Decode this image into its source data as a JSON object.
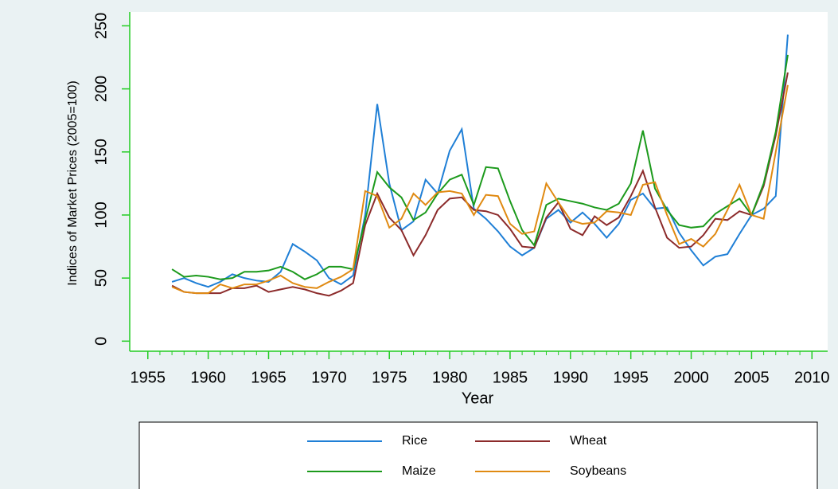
{
  "chart_data": {
    "type": "line",
    "x_label": "Year",
    "y_label": "Indices of Market Prices (2005=100)",
    "x": [
      1957,
      1958,
      1959,
      1960,
      1961,
      1962,
      1963,
      1964,
      1965,
      1966,
      1967,
      1968,
      1969,
      1970,
      1971,
      1972,
      1973,
      1974,
      1975,
      1976,
      1977,
      1978,
      1979,
      1980,
      1981,
      1982,
      1983,
      1984,
      1985,
      1986,
      1987,
      1988,
      1989,
      1990,
      1991,
      1992,
      1993,
      1994,
      1995,
      1996,
      1997,
      1998,
      1999,
      2000,
      2001,
      2002,
      2003,
      2004,
      2005,
      2006,
      2007,
      2008
    ],
    "series": [
      {
        "name": "Rice",
        "color": "#1f7fd6",
        "values": [
          47,
          50,
          46,
          43,
          47,
          53,
          50,
          48,
          47,
          55,
          77,
          71,
          64,
          50,
          45,
          52,
          100,
          188,
          125,
          88,
          95,
          128,
          117,
          151,
          168,
          105,
          97,
          87,
          75,
          68,
          74,
          97,
          104,
          94,
          102,
          93,
          82,
          93,
          112,
          117,
          105,
          106,
          86,
          72,
          60,
          67,
          69,
          85,
          100,
          105,
          115,
          243
        ]
      },
      {
        "name": "Wheat",
        "color": "#8c2b2b",
        "values": [
          44,
          39,
          38,
          38,
          38,
          42,
          42,
          44,
          39,
          41,
          43,
          41,
          38,
          36,
          40,
          46,
          92,
          117,
          98,
          88,
          68,
          84,
          104,
          113,
          114,
          104,
          103,
          100,
          89,
          75,
          74,
          98,
          110,
          89,
          84,
          99,
          92,
          98,
          115,
          135,
          106,
          82,
          74,
          75,
          84,
          97,
          96,
          103,
          100,
          123,
          163,
          213
        ]
      },
      {
        "name": "Maize",
        "color": "#1c9a1c",
        "values": [
          57,
          51,
          52,
          51,
          49,
          50,
          55,
          55,
          56,
          59,
          55,
          49,
          53,
          59,
          59,
          57,
          96,
          134,
          122,
          114,
          96,
          102,
          117,
          128,
          132,
          108,
          138,
          137,
          111,
          88,
          76,
          108,
          113,
          111,
          109,
          106,
          104,
          109,
          125,
          167,
          121,
          104,
          92,
          90,
          91,
          101,
          107,
          113,
          100,
          125,
          166,
          227
        ]
      },
      {
        "name": "Soybeans",
        "color": "#e08a12",
        "values": [
          43,
          39,
          38,
          38,
          45,
          42,
          45,
          45,
          48,
          52,
          46,
          43,
          42,
          47,
          51,
          57,
          119,
          115,
          90,
          97,
          117,
          108,
          118,
          119,
          117,
          100,
          116,
          115,
          93,
          85,
          87,
          125,
          110,
          96,
          93,
          94,
          103,
          102,
          100,
          124,
          126,
          100,
          77,
          81,
          75,
          85,
          104,
          124,
          100,
          97,
          150,
          203
        ]
      }
    ],
    "xlim": [
      1953.5,
      2011.3
    ],
    "ylim": [
      -8,
      261
    ],
    "xticks": [
      1955,
      1960,
      1965,
      1970,
      1975,
      1980,
      1985,
      1990,
      1995,
      2000,
      2005,
      2010
    ],
    "yticks": [
      0,
      50,
      100,
      150,
      200,
      250
    ]
  }
}
